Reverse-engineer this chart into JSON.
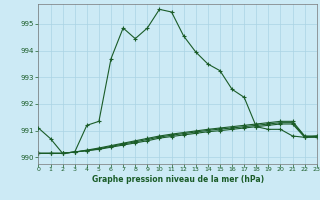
{
  "title": "Graphe pression niveau de la mer (hPa)",
  "bg_color": "#cceaf5",
  "grid_color": "#aad4e4",
  "line_color": "#1a5c28",
  "xlim": [
    0,
    23
  ],
  "ylim": [
    989.75,
    995.75
  ],
  "yticks": [
    990,
    991,
    992,
    993,
    994,
    995
  ],
  "xtick_labels": [
    "0",
    "1",
    "2",
    "3",
    "4",
    "5",
    "6",
    "7",
    "8",
    "9",
    "10",
    "11",
    "12",
    "13",
    "14",
    "15",
    "16",
    "17",
    "18",
    "19",
    "20",
    "21",
    "22",
    "23"
  ],
  "main_series": [
    991.1,
    990.7,
    990.15,
    990.2,
    991.2,
    991.35,
    993.7,
    994.85,
    994.45,
    994.85,
    995.55,
    995.45,
    994.55,
    993.95,
    993.5,
    993.25,
    992.55,
    992.25,
    991.15,
    991.05,
    991.05,
    990.8,
    990.75,
    990.8
  ],
  "flat_series1": [
    990.15,
    990.15,
    990.15,
    990.2,
    990.25,
    990.3,
    990.38,
    990.46,
    990.54,
    990.62,
    990.72,
    990.78,
    990.84,
    990.9,
    990.96,
    991.0,
    991.05,
    991.1,
    991.15,
    991.2,
    991.25,
    991.25,
    990.75,
    990.75
  ],
  "flat_series2": [
    990.15,
    990.15,
    990.15,
    990.2,
    990.25,
    990.32,
    990.41,
    990.5,
    990.58,
    990.67,
    990.76,
    990.83,
    990.89,
    990.95,
    991.01,
    991.06,
    991.1,
    991.15,
    991.2,
    991.25,
    991.3,
    991.3,
    990.78,
    990.78
  ],
  "flat_series3": [
    990.15,
    990.15,
    990.15,
    990.2,
    990.27,
    990.35,
    990.44,
    990.53,
    990.62,
    990.71,
    990.8,
    990.87,
    990.93,
    990.99,
    991.05,
    991.1,
    991.15,
    991.2,
    991.25,
    991.3,
    991.35,
    991.35,
    990.8,
    990.8
  ]
}
